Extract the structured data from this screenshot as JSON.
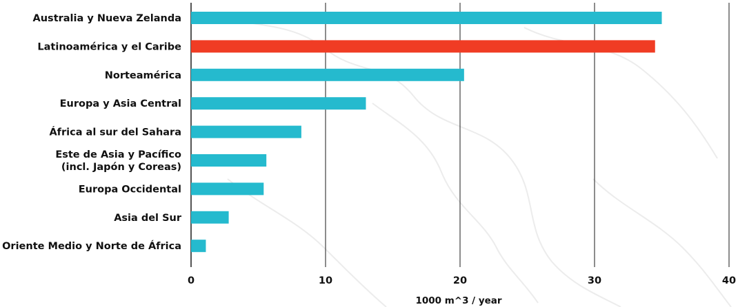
{
  "chart_data": {
    "type": "bar",
    "orientation": "horizontal",
    "title": "",
    "xlabel": "1000 m^3 / year",
    "ylabel": "",
    "xlim": [
      0,
      40
    ],
    "xticks": [
      0,
      10,
      20,
      30,
      40
    ],
    "grid": "vertical",
    "legend": "none",
    "colors": {
      "default": "#25BACE",
      "highlight": "#F03C24"
    },
    "bars": [
      {
        "label": [
          "Australia y Nueva Zelanda"
        ],
        "value": 35.0,
        "highlight": false
      },
      {
        "label": [
          "Latinoamérica y el Caribe"
        ],
        "value": 34.5,
        "highlight": true
      },
      {
        "label": [
          "Norteamérica"
        ],
        "value": 20.3,
        "highlight": false
      },
      {
        "label": [
          "Europa y Asia Central"
        ],
        "value": 13.0,
        "highlight": false
      },
      {
        "label": [
          "África al sur del Sahara"
        ],
        "value": 8.2,
        "highlight": false
      },
      {
        "label": [
          "Este de Asia y Pacífico",
          "(incl. Japón y Coreas)"
        ],
        "value": 5.6,
        "highlight": false
      },
      {
        "label": [
          "Europa Occidental"
        ],
        "value": 5.4,
        "highlight": false
      },
      {
        "label": [
          "Asia del Sur"
        ],
        "value": 2.8,
        "highlight": false
      },
      {
        "label": [
          "Oriente Medio y Norte de  África"
        ],
        "value": 1.1,
        "highlight": false
      }
    ]
  }
}
